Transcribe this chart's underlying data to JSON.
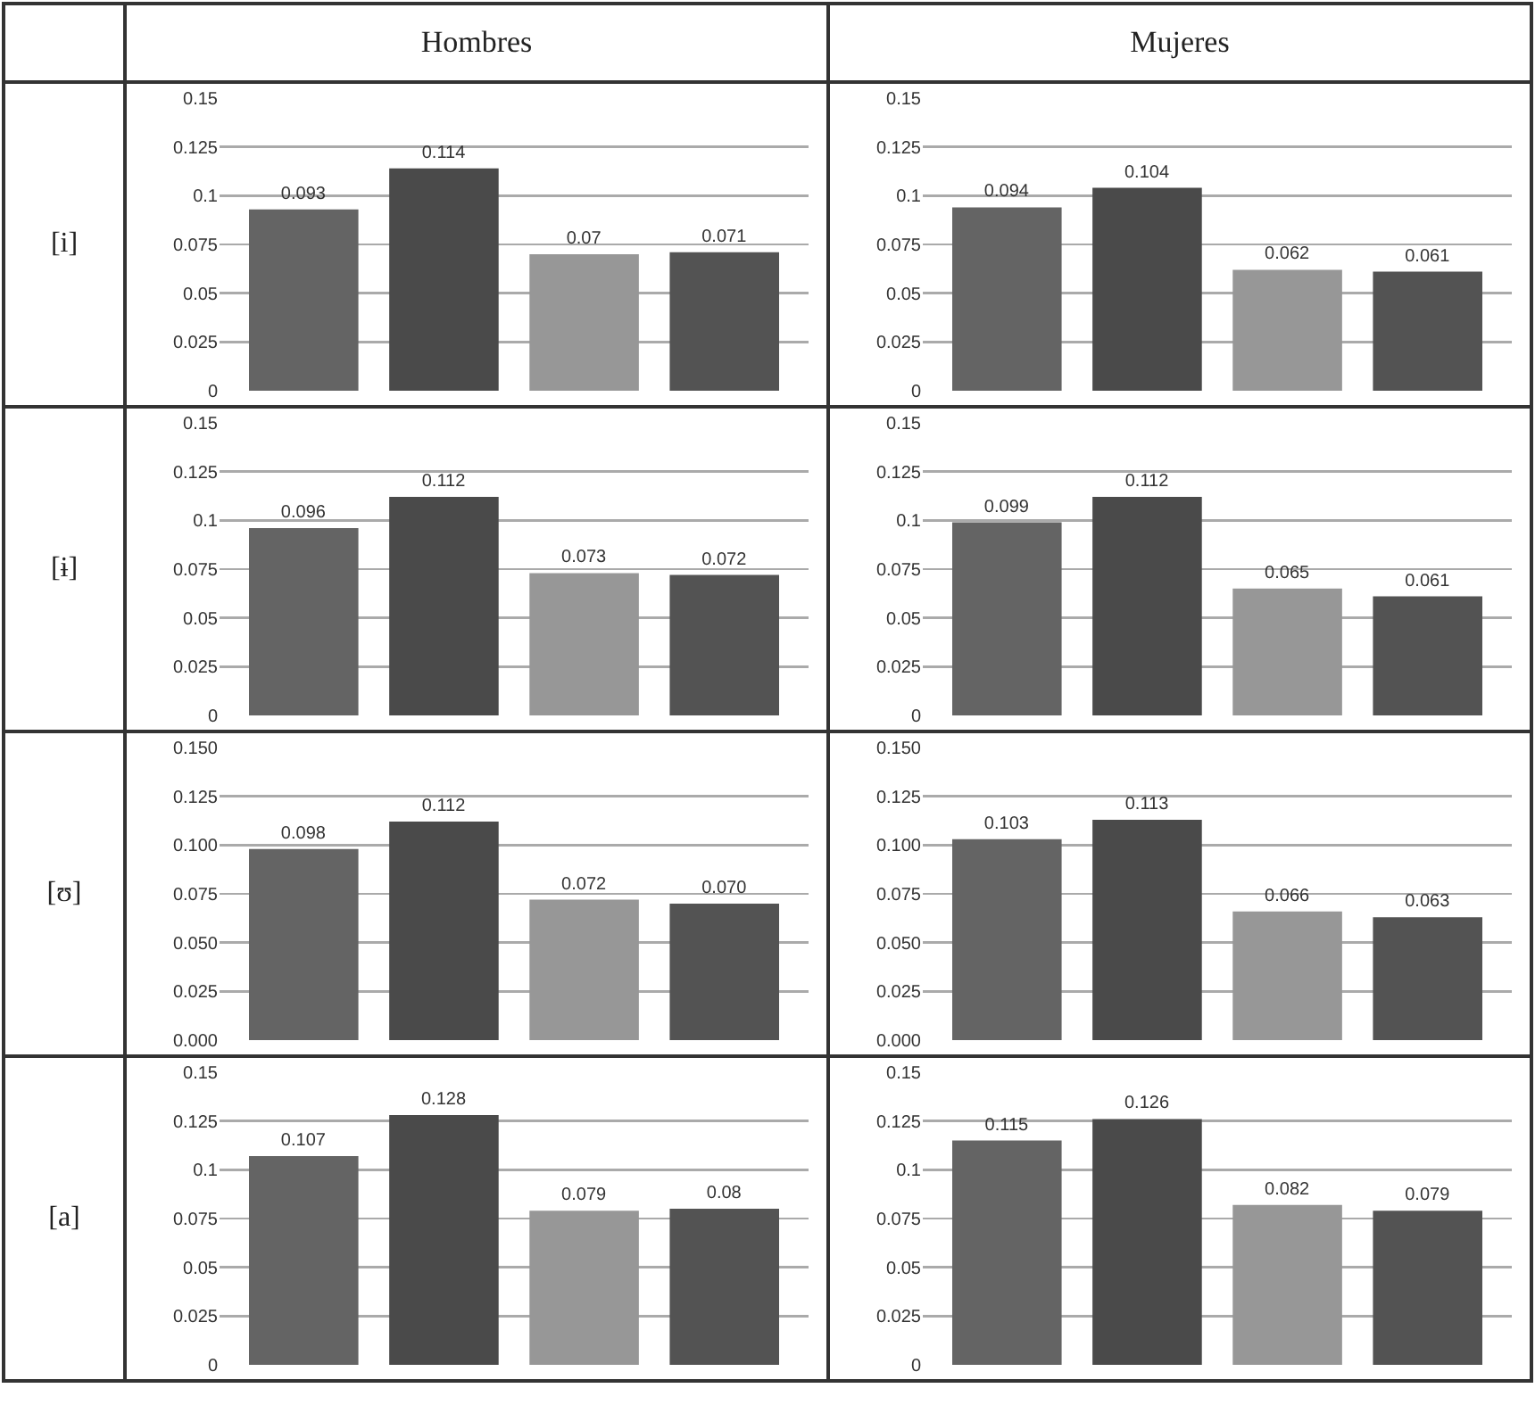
{
  "chart_data": [
    {
      "type": "bar",
      "title": "Hombres",
      "ylabel": "[i]",
      "categories": [
        null,
        null,
        null,
        null
      ],
      "values": [
        0.093,
        0.114,
        0.07,
        0.071
      ],
      "colors": [
        "#646464",
        "#4a4a4a",
        "#979797",
        "#535353"
      ],
      "ylim": [
        0,
        0.15
      ],
      "yticks": [
        0,
        0.025,
        0.05,
        0.075,
        0.1,
        0.125,
        0.15
      ],
      "grid": "y",
      "data_labels": true,
      "tick_labels": "y"
    },
    {
      "type": "bar",
      "title": "Mujeres",
      "categories": [
        null,
        null,
        null,
        null
      ],
      "values": [
        0.094,
        0.104,
        0.062,
        0.061
      ],
      "colors": [
        "#646464",
        "#4a4a4a",
        "#979797",
        "#535353"
      ],
      "ylim": [
        0,
        0.15
      ],
      "yticks": [
        0,
        0.025,
        0.05,
        0.075,
        0.1,
        0.125,
        0.15
      ],
      "grid": "y",
      "data_labels": true,
      "tick_labels": "y"
    },
    {
      "type": "bar",
      "ylabel": "[ɨ]",
      "categories": [
        null,
        null,
        null,
        null
      ],
      "values": [
        0.096,
        0.112,
        0.073,
        0.072
      ],
      "colors": [
        "#646464",
        "#4a4a4a",
        "#979797",
        "#535353"
      ],
      "ylim": [
        0,
        0.15
      ],
      "yticks": [
        0,
        0.025,
        0.05,
        0.075,
        0.1,
        0.125,
        0.15
      ],
      "grid": "y",
      "data_labels": true,
      "tick_labels": "y"
    },
    {
      "type": "bar",
      "categories": [
        null,
        null,
        null,
        null
      ],
      "values": [
        0.099,
        0.112,
        0.065,
        0.061
      ],
      "colors": [
        "#646464",
        "#4a4a4a",
        "#979797",
        "#535353"
      ],
      "ylim": [
        0,
        0.15
      ],
      "yticks": [
        0,
        0.025,
        0.05,
        0.075,
        0.1,
        0.125,
        0.15
      ],
      "grid": "y",
      "data_labels": true,
      "tick_labels": "y"
    },
    {
      "type": "bar",
      "ylabel": "[ʊ]",
      "categories": [
        null,
        null,
        null,
        null
      ],
      "values": [
        0.098,
        0.112,
        0.072,
        0.07
      ],
      "value_labels": [
        "0.098",
        "0.112",
        "0.072",
        "0.070"
      ],
      "colors": [
        "#646464",
        "#4a4a4a",
        "#979797",
        "#535353"
      ],
      "ylim": [
        0,
        0.15
      ],
      "yticks": [
        {
          "value": 0,
          "label": "0.000"
        },
        {
          "value": 0.025,
          "label": "0.025"
        },
        {
          "value": 0.05,
          "label": "0.050"
        },
        {
          "value": 0.075,
          "label": "0.075"
        },
        {
          "value": 0.1,
          "label": "0.100"
        },
        {
          "value": 0.125,
          "label": "0.125"
        },
        {
          "value": 0.15,
          "label": "0.150"
        }
      ],
      "grid": "y",
      "tick_labels": "y"
    },
    {
      "type": "bar",
      "categories": [
        null,
        null,
        null,
        null
      ],
      "values": [
        0.103,
        0.113,
        0.066,
        0.063
      ],
      "value_labels": [
        "0.103",
        "0.113",
        "0.066",
        "0.063"
      ],
      "colors": [
        "#646464",
        "#4a4a4a",
        "#979797",
        "#535353"
      ],
      "ylim": [
        0,
        0.15
      ],
      "yticks": [
        {
          "value": 0,
          "label": "0.000"
        },
        {
          "value": 0.025,
          "label": "0.025"
        },
        {
          "value": 0.05,
          "label": "0.050"
        },
        {
          "value": 0.075,
          "label": "0.075"
        },
        {
          "value": 0.1,
          "label": "0.100"
        },
        {
          "value": 0.125,
          "label": "0.125"
        },
        {
          "value": 0.15,
          "label": "0.150"
        }
      ],
      "grid": "y",
      "tick_labels": "y"
    },
    {
      "type": "bar",
      "ylabel": "[a]",
      "categories": [
        null,
        null,
        null,
        null
      ],
      "values": [
        0.107,
        0.128,
        0.079,
        0.08
      ],
      "colors": [
        "#646464",
        "#4a4a4a",
        "#979797",
        "#535353"
      ],
      "ylim": [
        0,
        0.15
      ],
      "yticks": [
        0,
        0.025,
        0.05,
        0.075,
        0.1,
        0.125,
        0.15
      ],
      "grid": "y",
      "data_labels": true,
      "tick_labels": "y"
    },
    {
      "type": "bar",
      "categories": [
        null,
        null,
        null,
        null
      ],
      "values": [
        0.115,
        0.126,
        0.082,
        0.079
      ],
      "colors": [
        "#646464",
        "#4a4a4a",
        "#979797",
        "#535353"
      ],
      "ylim": [
        0,
        0.15
      ],
      "yticks": [
        0,
        0.025,
        0.05,
        0.075,
        0.1,
        0.125,
        0.15
      ],
      "grid": "y",
      "data_labels": true,
      "tick_labels": "y"
    }
  ]
}
